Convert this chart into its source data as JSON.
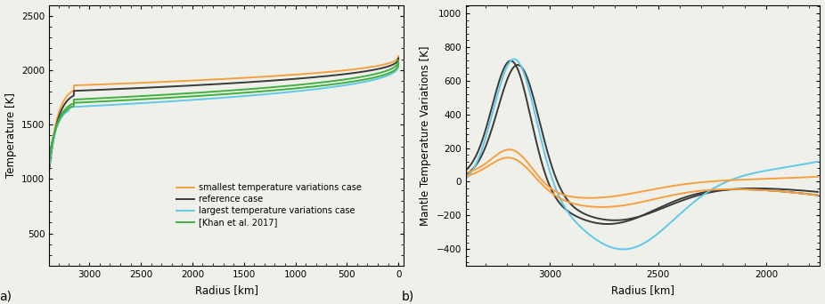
{
  "panel_a": {
    "xlabel": "Radius [km]",
    "ylabel": "Temperature [K]",
    "label": "a)",
    "xlim": [
      3390,
      -50
    ],
    "ylim": [
      200,
      2600
    ],
    "yticks": [
      500,
      1000,
      1500,
      2000,
      2500
    ],
    "xticks": [
      3000,
      2500,
      2000,
      1500,
      1000,
      500,
      0
    ],
    "colors": {
      "orange": "#f5a040",
      "black": "#3a3a3a",
      "cyan": "#60c8e8",
      "green": "#40b040"
    },
    "legend": [
      {
        "label": "smallest temperature variations case",
        "color": "#f5a040"
      },
      {
        "label": "reference case",
        "color": "#3a3a3a"
      },
      {
        "label": "largest temperature variations case",
        "color": "#60c8e8"
      },
      {
        "label": "[Khan et al. 2017]",
        "color": "#40b040"
      }
    ]
  },
  "panel_b": {
    "xlabel": "Radius [km]",
    "ylabel": "Mantle Temperature Variations [K]",
    "label": "b)",
    "xlim": [
      3390,
      1750
    ],
    "ylim": [
      -500,
      1050
    ],
    "yticks": [
      -400,
      -200,
      0,
      200,
      400,
      600,
      800,
      1000
    ],
    "xticks": [
      3000,
      2500,
      2000
    ],
    "colors": {
      "orange": "#f5a040",
      "black": "#3a3a3a",
      "cyan": "#60c8e8"
    }
  },
  "bg_color": "#f0f0eb"
}
